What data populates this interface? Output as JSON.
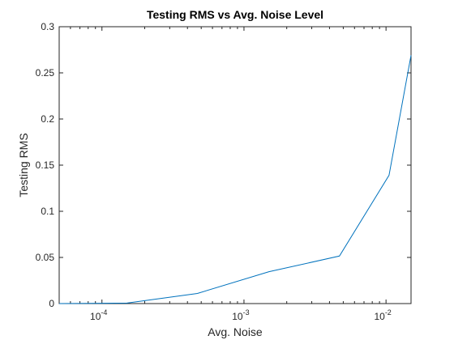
{
  "chart_data": {
    "type": "line",
    "title": "Testing RMS vs Avg. Noise Level",
    "xlabel": "Avg. Noise",
    "ylabel": "Testing RMS",
    "xscale": "log",
    "xlim": [
      5e-05,
      0.015
    ],
    "ylim": [
      0,
      0.3
    ],
    "grid": false,
    "box": true,
    "xticks": [
      {
        "value": 0.0001,
        "base": "10",
        "exp": "-4"
      },
      {
        "value": 0.001,
        "base": "10",
        "exp": "-3"
      },
      {
        "value": 0.01,
        "base": "10",
        "exp": "-2"
      }
    ],
    "yticks": [
      0,
      0.05,
      0.1,
      0.15,
      0.2,
      0.25,
      0.3
    ],
    "ytick_labels": [
      "0",
      "0.05",
      "0.1",
      "0.15",
      "0.2",
      "0.25",
      "0.3"
    ],
    "series": [
      {
        "color": "#0072BD",
        "x": [
          5e-05,
          0.00015,
          0.00047,
          0.0015,
          0.0047,
          0.0105,
          0.015
        ],
        "y": [
          0.0,
          0.0005,
          0.011,
          0.0345,
          0.0515,
          0.139,
          0.269
        ]
      }
    ]
  }
}
